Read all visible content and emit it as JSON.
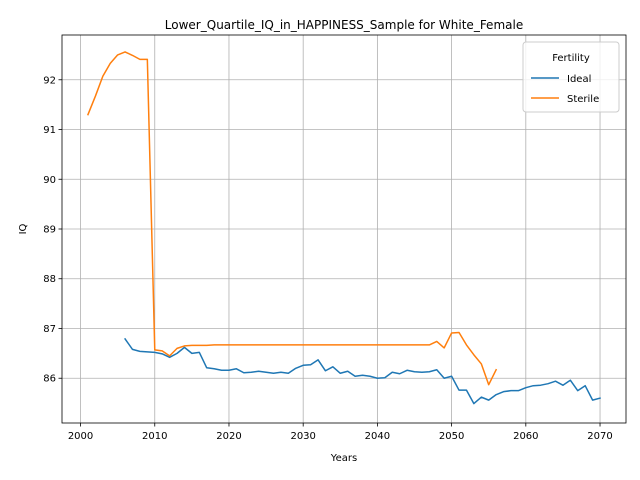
{
  "chart_data": {
    "type": "line",
    "title": "Lower_Quartile_IQ_in_HAPPINESS_Sample for White_Female",
    "xlabel": "Years",
    "ylabel": "IQ",
    "xlim": [
      1997.5,
      2073.5
    ],
    "ylim": [
      85.1,
      92.9
    ],
    "xticks": [
      2000,
      2010,
      2020,
      2030,
      2040,
      2050,
      2060,
      2070
    ],
    "yticks": [
      86,
      87,
      88,
      89,
      90,
      91,
      92
    ],
    "grid": true,
    "legend": {
      "title": "Fertility",
      "placement": "top-right"
    },
    "series": [
      {
        "name": "Ideal",
        "color": "#1f77b4",
        "x": [
          2006,
          2007,
          2008,
          2009,
          2010,
          2011,
          2012,
          2013,
          2014,
          2015,
          2016,
          2017,
          2018,
          2019,
          2020,
          2021,
          2022,
          2023,
          2024,
          2025,
          2026,
          2027,
          2028,
          2029,
          2030,
          2031,
          2032,
          2033,
          2034,
          2035,
          2036,
          2037,
          2038,
          2039,
          2040,
          2041,
          2042,
          2043,
          2044,
          2045,
          2046,
          2047,
          2048,
          2049,
          2050,
          2051,
          2052,
          2053,
          2054,
          2055,
          2056,
          2057,
          2058,
          2059,
          2060,
          2061,
          2062,
          2063,
          2064,
          2065,
          2066,
          2067,
          2068,
          2069,
          2070
        ],
        "y": [
          86.79,
          86.58,
          86.54,
          86.53,
          86.52,
          86.49,
          86.42,
          86.5,
          86.62,
          86.5,
          86.52,
          86.21,
          86.19,
          86.16,
          86.16,
          86.19,
          86.11,
          86.12,
          86.14,
          86.12,
          86.1,
          86.12,
          86.1,
          86.2,
          86.26,
          86.27,
          86.37,
          86.15,
          86.23,
          86.1,
          86.14,
          86.04,
          86.06,
          86.04,
          86.0,
          86.01,
          86.12,
          86.09,
          86.16,
          86.13,
          86.12,
          86.13,
          86.17,
          86.0,
          86.04,
          85.76,
          85.76,
          85.49,
          85.62,
          85.56,
          85.67,
          85.73,
          85.75,
          85.75,
          85.81,
          85.85,
          85.86,
          85.89,
          85.94,
          85.86,
          85.96,
          85.75,
          85.85,
          85.56,
          85.6
        ]
      },
      {
        "name": "Sterile",
        "color": "#ff7f0e",
        "x": [
          2001,
          2002,
          2003,
          2004,
          2005,
          2006,
          2007,
          2008,
          2009,
          2010,
          2011,
          2012,
          2013,
          2014,
          2015,
          2016,
          2017,
          2018,
          2019,
          2020,
          2025,
          2030,
          2035,
          2040,
          2045,
          2046,
          2047,
          2048,
          2049,
          2050,
          2051,
          2052,
          2053,
          2054,
          2055,
          2056
        ],
        "y": [
          91.3,
          91.67,
          92.07,
          92.33,
          92.5,
          92.56,
          92.49,
          92.41,
          92.41,
          86.57,
          86.55,
          86.45,
          86.6,
          86.65,
          86.66,
          86.66,
          86.66,
          86.67,
          86.67,
          86.67,
          86.67,
          86.67,
          86.67,
          86.67,
          86.67,
          86.67,
          86.67,
          86.74,
          86.61,
          86.91,
          86.92,
          86.67,
          86.47,
          86.29,
          85.87,
          86.17
        ]
      }
    ]
  }
}
